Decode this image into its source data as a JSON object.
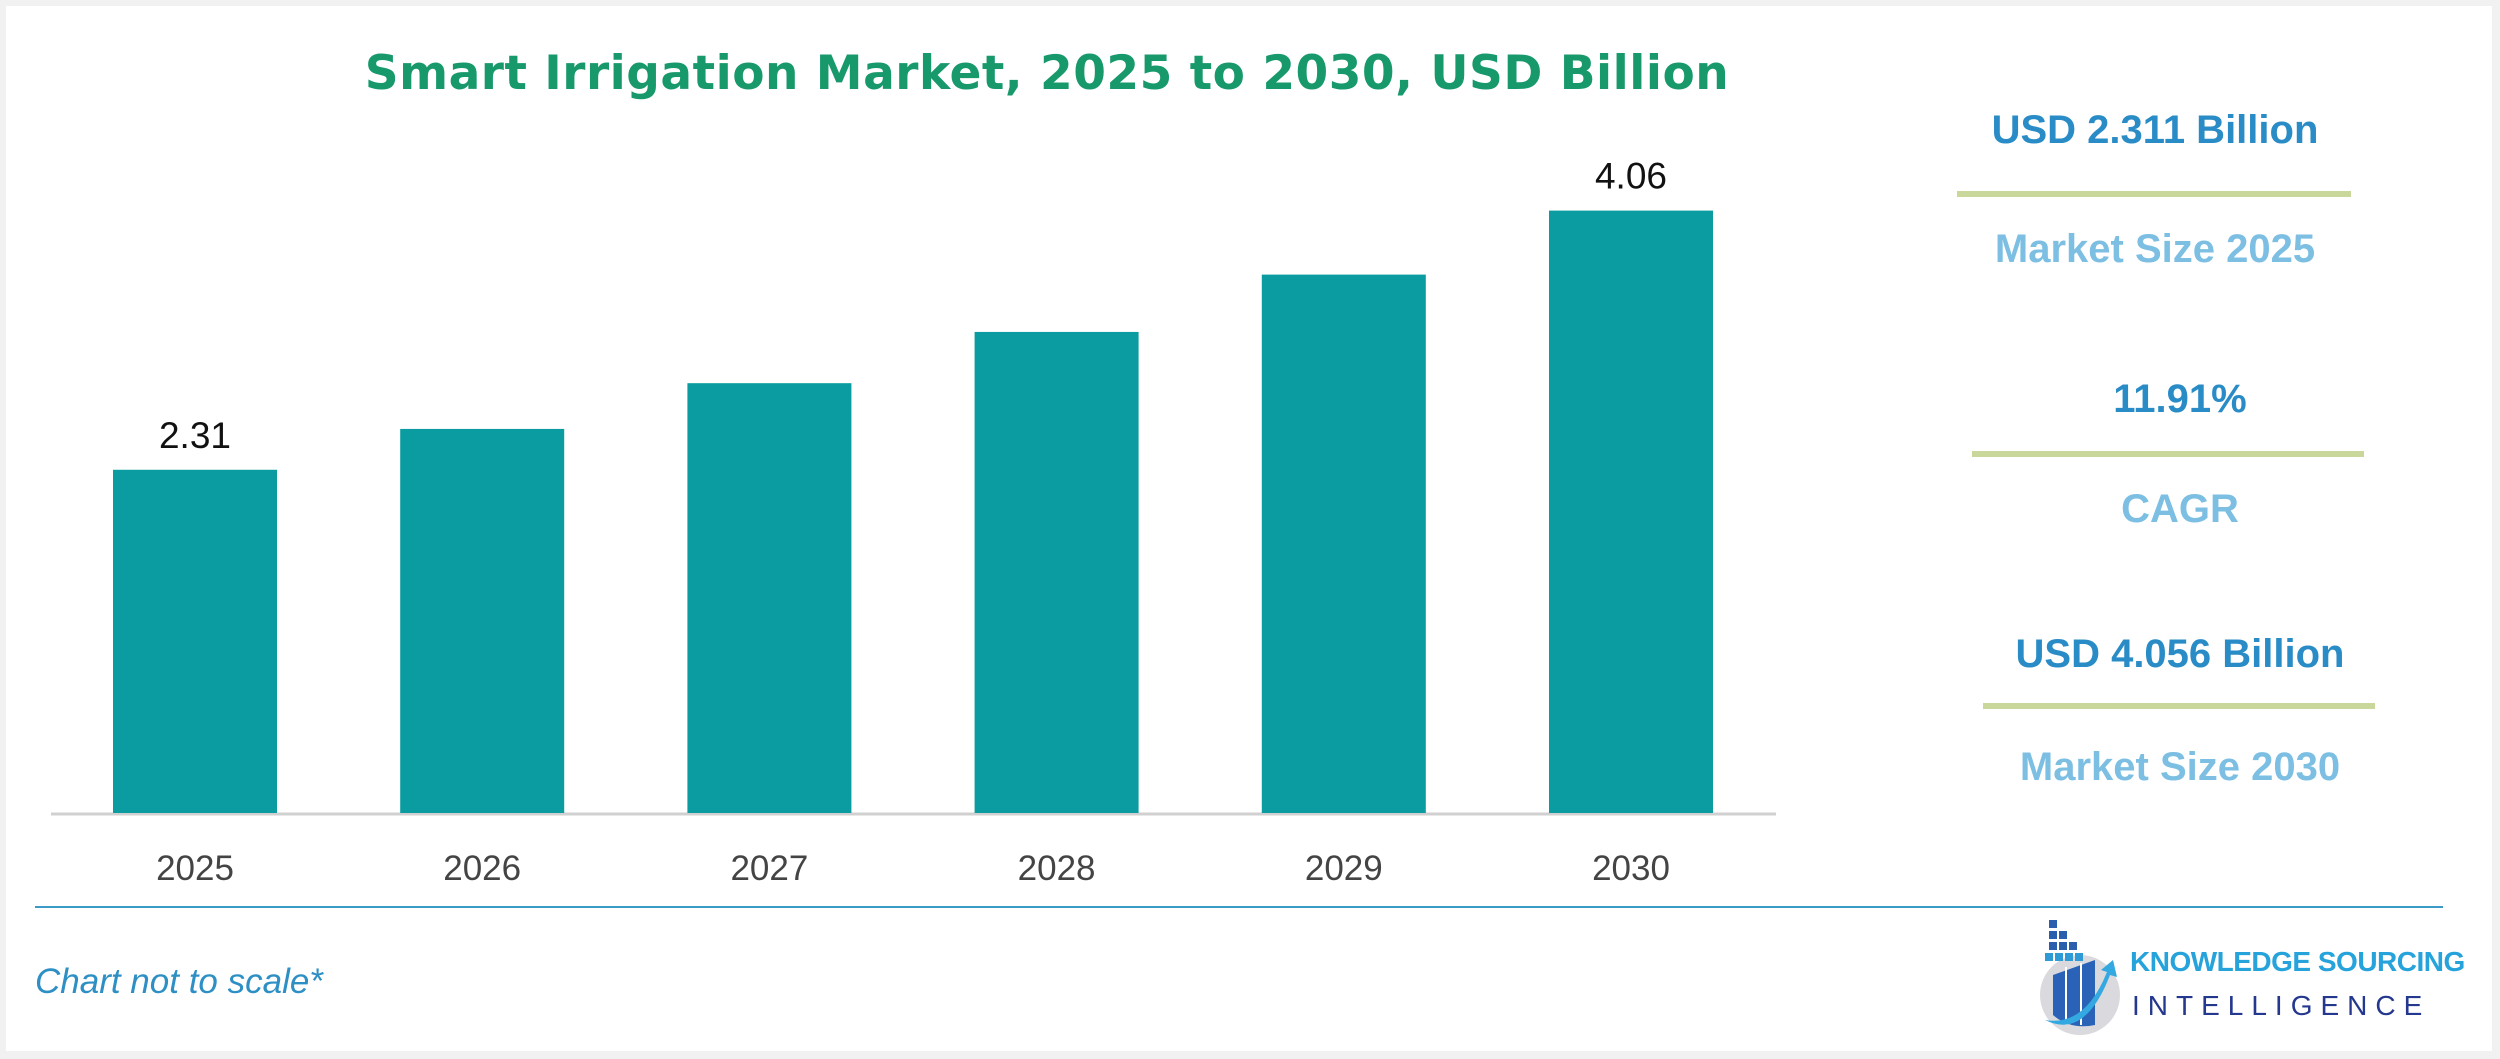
{
  "chart_data": {
    "type": "bar",
    "title": "Smart Irrigation Market, 2025 to 2030, USD Billion",
    "categories": [
      "2025",
      "2026",
      "2027",
      "2028",
      "2029",
      "2030"
    ],
    "values": [
      2.311,
      2.586,
      2.894,
      3.239,
      3.625,
      4.056
    ],
    "data_labels": {
      "2025": "2.31",
      "2030": "4.06"
    },
    "xlabel": "",
    "ylabel": "",
    "ylim": [
      0,
      4.06
    ],
    "grid": false,
    "bar_color": "#0a9ca0"
  },
  "kpis": [
    {
      "value": "USD 2.311 Billion",
      "label": "Market Size 2025"
    },
    {
      "value": "11.91%",
      "label": "CAGR"
    },
    {
      "value": "USD 4.056 Billion",
      "label": "Market Size 2030"
    }
  ],
  "note": "Chart not to scale*",
  "logo": {
    "line1": "KNOWLEDGE SOURCING",
    "line2": "INTELLIGENCE"
  },
  "colors": {
    "title": "#17996b",
    "kpi_value": "#2a8cc6",
    "kpi_label": "#7cbfe3",
    "divider": "#cad79b"
  }
}
